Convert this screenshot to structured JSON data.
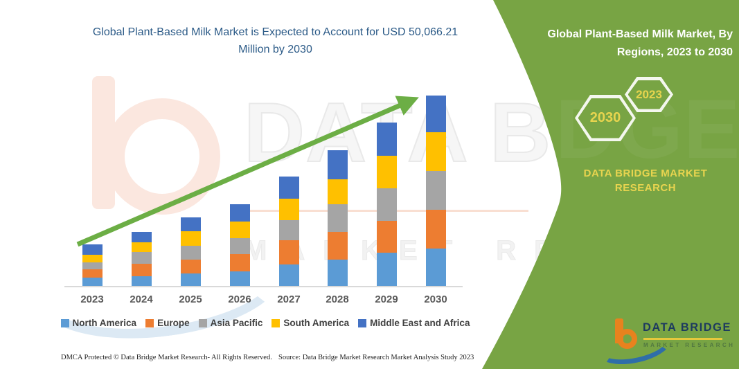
{
  "header": {
    "chart_title": "Global Plant-Based Milk Market is Expected to Account for USD 50,066.21 Million by 2030"
  },
  "side_panel": {
    "title": "Global Plant-Based Milk Market, By Regions, 2023 to 2030",
    "hexagon_years": [
      "2030",
      "2023"
    ],
    "brand_name": "DATA BRIDGE MARKET RESEARCH",
    "background_color": "#78a444",
    "accent_text_color": "#e8d44f"
  },
  "chart_data": {
    "type": "bar",
    "stacked": true,
    "title": "Global Plant-Based Milk Market is Expected to Account for USD 50,066.21 Million by 2030",
    "categories": [
      "2023",
      "2024",
      "2025",
      "2026",
      "2027",
      "2028",
      "2029",
      "2030"
    ],
    "series": [
      {
        "name": "North America",
        "color": "#5B9BD5",
        "values": [
          12.3,
          14.3,
          17.7,
          21.0,
          31.0,
          37.7,
          47.7,
          54.3
        ]
      },
      {
        "name": "Europe",
        "color": "#ED7D31",
        "values": [
          11.7,
          17.7,
          20.0,
          25.0,
          35.0,
          40.0,
          46.7,
          55.7
        ]
      },
      {
        "name": "Asia Pacific",
        "color": "#A5A5A5",
        "values": [
          10.0,
          17.3,
          20.0,
          23.3,
          29.0,
          40.0,
          46.7,
          56.0
        ]
      },
      {
        "name": "South America",
        "color": "#FFC000",
        "values": [
          11.0,
          13.3,
          21.7,
          24.0,
          31.0,
          36.7,
          47.3,
          55.7
        ]
      },
      {
        "name": "Middle East and Africa",
        "color": "#4472C4",
        "values": [
          15.0,
          15.7,
          19.3,
          25.0,
          31.7,
          42.0,
          47.7,
          53.7
        ]
      }
    ],
    "value_units": "relative bar height (chart shows no value axis)",
    "totals_relative": [
      60.0,
      78.3,
      98.7,
      118.3,
      157.7,
      196.4,
      236.1,
      275.4
    ],
    "xlabel": "",
    "ylabel": "",
    "grid": false,
    "legend_position": "bottom",
    "annotations": [
      "green upward trend arrow from 2023 to 2030"
    ],
    "arrow_color": "#6cae45"
  },
  "watermark": {
    "logo_text": "DATA BRIDGE",
    "logo_subtext": "MARKET RESEARCH",
    "panel_continuation": "DGE"
  },
  "footer": {
    "dmca": "DMCA Protected © Data Bridge Market Research-  All Rights Reserved.",
    "source": "Source: Data Bridge Market Research  Market Analysis Study 2023"
  },
  "logo": {
    "name": "DATA BRIDGE",
    "subtitle": "MARKET RESEARCH"
  }
}
